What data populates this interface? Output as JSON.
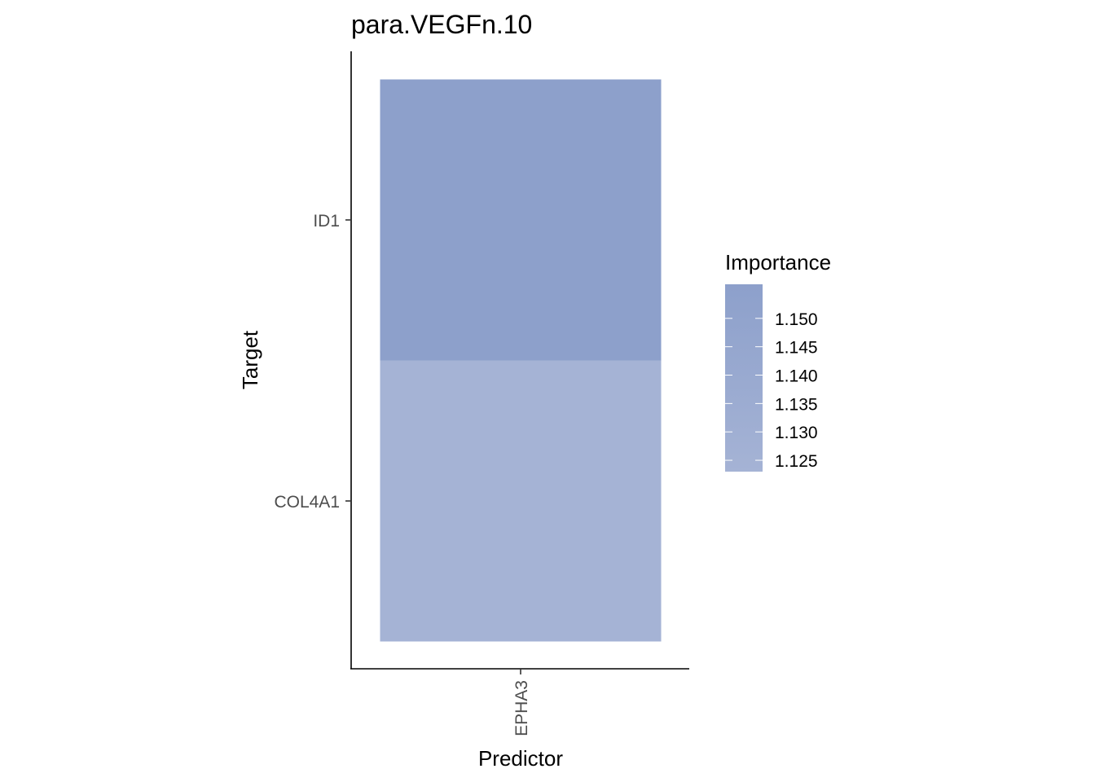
{
  "chart_data": {
    "type": "heatmap",
    "title": "para.VEGFn.10",
    "xlabel": "Predictor",
    "ylabel": "Target",
    "x_categories": [
      "EPHA3"
    ],
    "y_categories": [
      "COL4A1",
      "ID1"
    ],
    "cells": [
      {
        "x": "EPHA3",
        "y": "ID1",
        "value": 1.156
      },
      {
        "x": "EPHA3",
        "y": "COL4A1",
        "value": 1.123
      }
    ],
    "legend": {
      "title": "Importance",
      "ticks": [
        "1.150",
        "1.145",
        "1.140",
        "1.135",
        "1.130",
        "1.125"
      ],
      "tick_values": [
        1.15,
        1.145,
        1.14,
        1.135,
        1.13,
        1.125
      ],
      "range": [
        1.123,
        1.156
      ],
      "color_low": "#a5b3d5",
      "color_high": "#8da0cb",
      "placement": "right"
    },
    "grid": false
  }
}
